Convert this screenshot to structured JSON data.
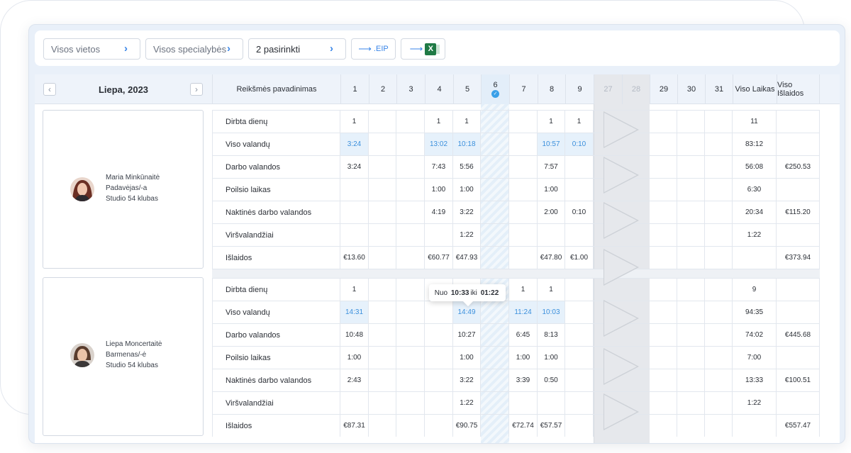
{
  "filters": {
    "locations": "Visos vietos",
    "specialties": "Visos specialybės",
    "selected": "2 pasirinkti",
    "export_eip": ".EIP",
    "export_excel_icon": "excel-icon",
    "chevron": "›",
    "arrow": "⟶"
  },
  "calendar": {
    "month": "Liepa, 2023",
    "prev": "‹",
    "next": "›",
    "name_column": "Reikšmės pavadinimas",
    "days": [
      "1",
      "2",
      "3",
      "4",
      "5",
      "6",
      "7",
      "8",
      "9",
      "27",
      "28",
      "29",
      "30",
      "31"
    ],
    "today_badge": "✓",
    "total_hours_header": "Viso Laikas",
    "total_cost_header": "Viso Išlaidos"
  },
  "employees": [
    {
      "name": "Maria Minkūnaitė",
      "role": "Padavėjas/-a",
      "place": "Studio 54 klubas",
      "rows": [
        {
          "label": "Dirbta dienų",
          "cells": [
            "1",
            "",
            "",
            "1",
            "1",
            "",
            "",
            "1",
            "1",
            "",
            "",
            "",
            "",
            ""
          ],
          "total": "11",
          "cost": ""
        },
        {
          "label": "Viso valandų",
          "cells": [
            "3:24",
            "",
            "",
            "13:02",
            "10:18",
            "",
            "",
            "10:57",
            "0:10",
            "",
            "",
            "",
            "",
            ""
          ],
          "total": "83:12",
          "cost": "",
          "blue": true
        },
        {
          "label": "Darbo valandos",
          "cells": [
            "3:24",
            "",
            "",
            "7:43",
            "5:56",
            "",
            "",
            "7:57",
            "",
            "",
            "",
            "",
            "",
            ""
          ],
          "total": "56:08",
          "cost": "€250.53"
        },
        {
          "label": "Poilsio laikas",
          "cells": [
            "",
            "",
            "",
            "1:00",
            "1:00",
            "",
            "",
            "1:00",
            "",
            "",
            "",
            "",
            "",
            ""
          ],
          "total": "6:30",
          "cost": ""
        },
        {
          "label": "Naktinės darbo valandos",
          "cells": [
            "",
            "",
            "",
            "4:19",
            "3:22",
            "",
            "",
            "2:00",
            "0:10",
            "",
            "",
            "",
            "",
            ""
          ],
          "total": "20:34",
          "cost": "€115.20"
        },
        {
          "label": "Viršvalandžiai",
          "cells": [
            "",
            "",
            "",
            "",
            "1:22",
            "",
            "",
            "",
            "",
            "",
            "",
            "",
            "",
            ""
          ],
          "total": "1:22",
          "cost": ""
        },
        {
          "label": "Išlaidos",
          "cells": [
            "€13.60",
            "",
            "",
            "€60.77",
            "€47.93",
            "",
            "",
            "€47.80",
            "€1.00",
            "",
            "",
            "",
            "",
            ""
          ],
          "total": "",
          "cost": "€373.94"
        }
      ]
    },
    {
      "name": "Liepa Moncertaitė",
      "role": "Barmenas/-ė",
      "place": "Studio 54 klubas",
      "rows": [
        {
          "label": "Dirbta dienų",
          "cells": [
            "1",
            "",
            "",
            "",
            "1",
            "",
            "1",
            "1",
            "",
            "",
            "",
            "",
            "",
            ""
          ],
          "total": "9",
          "cost": ""
        },
        {
          "label": "Viso valandų",
          "cells": [
            "14:31",
            "",
            "",
            "",
            "14:49",
            "",
            "11:24",
            "10:03",
            "",
            "",
            "",
            "",
            "",
            ""
          ],
          "total": "94:35",
          "cost": "",
          "blue": true
        },
        {
          "label": "Darbo valandos",
          "cells": [
            "10:48",
            "",
            "",
            "",
            "10:27",
            "",
            "6:45",
            "8:13",
            "",
            "",
            "",
            "",
            "",
            ""
          ],
          "total": "74:02",
          "cost": "€445.68"
        },
        {
          "label": "Poilsio laikas",
          "cells": [
            "1:00",
            "",
            "",
            "",
            "1:00",
            "",
            "1:00",
            "1:00",
            "",
            "",
            "",
            "",
            "",
            ""
          ],
          "total": "7:00",
          "cost": ""
        },
        {
          "label": "Naktinės darbo valandos",
          "cells": [
            "2:43",
            "",
            "",
            "",
            "3:22",
            "",
            "3:39",
            "0:50",
            "",
            "",
            "",
            "",
            "",
            ""
          ],
          "total": "13:33",
          "cost": "€100.51"
        },
        {
          "label": "Viršvalandžiai",
          "cells": [
            "",
            "",
            "",
            "",
            "1:22",
            "",
            "",
            "",
            "",
            "",
            "",
            "",
            "",
            ""
          ],
          "total": "1:22",
          "cost": ""
        },
        {
          "label": "Išlaidos",
          "cells": [
            "€87.31",
            "",
            "",
            "",
            "€90.75",
            "",
            "€72.74",
            "€57.57",
            "",
            "",
            "",
            "",
            "",
            ""
          ],
          "total": "",
          "cost": "€557.47"
        }
      ]
    }
  ],
  "tooltip": {
    "prefix": "Nuo",
    "from": "10:33",
    "mid": "iki",
    "to": "01:22"
  }
}
